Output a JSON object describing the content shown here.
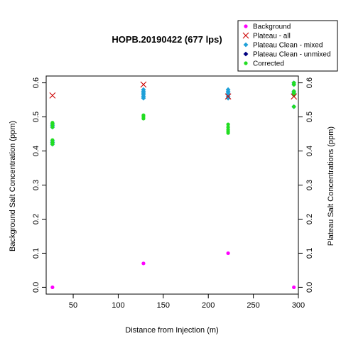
{
  "chart_data": {
    "type": "scatter",
    "title": "HOPB.20190422 (677 lps)",
    "xlabel": "Distance from Injection (m)",
    "ylabel_left": "Background Salt Concentration (ppm)",
    "ylabel_right": "Plateau Salt Concentrations (ppm)",
    "xlim": [
      20,
      300
    ],
    "ylim": [
      -0.02,
      0.62
    ],
    "x_ticks": [
      50,
      100,
      150,
      200,
      250,
      300
    ],
    "y_ticks": [
      0.0,
      0.1,
      0.2,
      0.3,
      0.4,
      0.5,
      0.6
    ],
    "y_tick_labels": [
      "0.0",
      "0.1",
      "0.2",
      "0.3",
      "0.4",
      "0.5",
      "0.6"
    ],
    "legend_position": "top-right",
    "series": [
      {
        "name": "Background",
        "marker": "dot",
        "color": "#ff00ff",
        "points": [
          [
            27,
            0.0
          ],
          [
            128,
            0.07
          ],
          [
            222,
            0.1
          ],
          [
            295,
            0.0
          ]
        ]
      },
      {
        "name": "Plateau - all",
        "marker": "x",
        "color": "#cc0000",
        "points": [
          [
            27,
            0.563
          ],
          [
            128,
            0.595
          ],
          [
            222,
            0.56
          ],
          [
            295,
            0.56
          ]
        ]
      },
      {
        "name": "Plateau Clean - mixed",
        "marker": "diamond",
        "color": "#1fa0d8",
        "points": [
          [
            27,
            0.48
          ],
          [
            27,
            0.475
          ],
          [
            27,
            0.47
          ],
          [
            27,
            0.43
          ],
          [
            27,
            0.425
          ],
          [
            27,
            0.42
          ],
          [
            128,
            0.58
          ],
          [
            128,
            0.575
          ],
          [
            128,
            0.57
          ],
          [
            128,
            0.565
          ],
          [
            128,
            0.56
          ],
          [
            128,
            0.555
          ],
          [
            222,
            0.58
          ],
          [
            222,
            0.575
          ],
          [
            222,
            0.57
          ],
          [
            222,
            0.565
          ],
          [
            222,
            0.56
          ],
          [
            222,
            0.555
          ],
          [
            295,
            0.6
          ],
          [
            295,
            0.595
          ],
          [
            295,
            0.575
          ],
          [
            295,
            0.57
          ],
          [
            295,
            0.565
          ],
          [
            295,
            0.53
          ]
        ]
      },
      {
        "name": "Plateau Clean - unmixed",
        "marker": "diamond",
        "color": "#000080",
        "points": []
      },
      {
        "name": "Corrected",
        "marker": "dot",
        "color": "#22dd22",
        "points": [
          [
            27,
            0.483
          ],
          [
            27,
            0.478
          ],
          [
            27,
            0.47
          ],
          [
            27,
            0.432
          ],
          [
            27,
            0.425
          ],
          [
            27,
            0.42
          ],
          [
            128,
            0.505
          ],
          [
            128,
            0.5
          ],
          [
            128,
            0.495
          ],
          [
            222,
            0.478
          ],
          [
            222,
            0.47
          ],
          [
            222,
            0.463
          ],
          [
            222,
            0.458
          ],
          [
            222,
            0.453
          ],
          [
            295,
            0.6
          ],
          [
            295,
            0.595
          ],
          [
            295,
            0.575
          ],
          [
            295,
            0.57
          ],
          [
            295,
            0.565
          ],
          [
            295,
            0.53
          ]
        ]
      }
    ]
  }
}
